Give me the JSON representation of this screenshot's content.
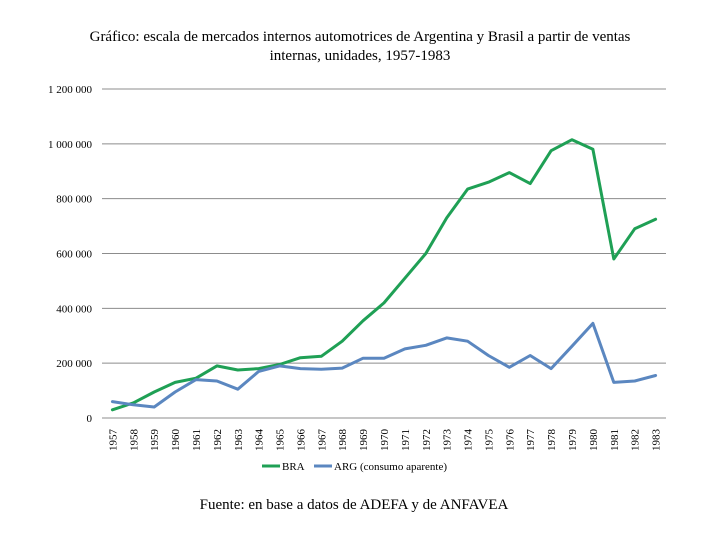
{
  "chart_data": {
    "type": "line",
    "title_line1": "Gráfico: escala de mercados internos automotrices de Argentina y Brasil a partir de ventas",
    "title_line2": "internas, unidades, 1957-1983",
    "categories": [
      "1957",
      "1958",
      "1959",
      "1960",
      "1961",
      "1962",
      "1963",
      "1964",
      "1965",
      "1966",
      "1967",
      "1968",
      "1969",
      "1970",
      "1971",
      "1972",
      "1973",
      "1974",
      "1975",
      "1976",
      "1977",
      "1978",
      "1979",
      "1980",
      "1981",
      "1982",
      "1983"
    ],
    "y_ticks": [
      0,
      200000,
      400000,
      600000,
      800000,
      1000000,
      1200000
    ],
    "y_tick_labels": [
      "0",
      "200 000",
      "400 000",
      "600 000",
      "800 000",
      "1 000 000",
      "1 200 000"
    ],
    "ylim": [
      0,
      1200000
    ],
    "series": [
      {
        "name": "BRA",
        "color": "#1fa055",
        "values": [
          30000,
          55000,
          95000,
          130000,
          145000,
          190000,
          175000,
          180000,
          195000,
          220000,
          225000,
          280000,
          355000,
          420000,
          510000,
          600000,
          730000,
          835000,
          860000,
          895000,
          855000,
          975000,
          1015000,
          980000,
          580000,
          690000,
          725000
        ]
      },
      {
        "name": "ARG (consumo aparente)",
        "color": "#5b87c0",
        "values": [
          60000,
          48000,
          40000,
          95000,
          140000,
          135000,
          105000,
          170000,
          190000,
          180000,
          178000,
          182000,
          218000,
          218000,
          252000,
          265000,
          292000,
          280000,
          228000,
          185000,
          228000,
          180000,
          262000,
          345000,
          130000,
          135000,
          155000
        ]
      }
    ],
    "gridlines": true,
    "legend_position": "bottom"
  },
  "source": "Fuente: en base a datos de ADEFA y de ANFAVEA"
}
